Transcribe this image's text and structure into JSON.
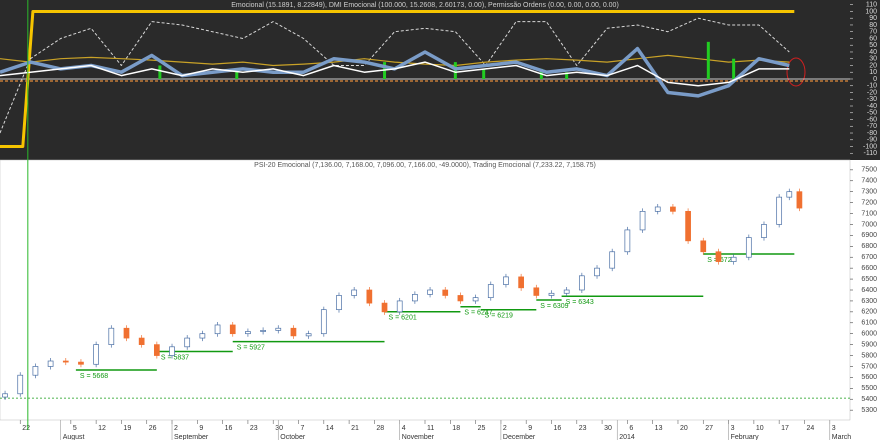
{
  "chart_data": [
    {
      "type": "line",
      "title": "Emocional (15.1891, 8.22849), DMI Emocional (100.000, 15.2608, 2.60173, 0.00), Permissão Ordens (0.00, 0.00, 0.00, 0.00)",
      "xlim": [
        -4,
        164
      ],
      "ylim": [
        -117,
        114
      ],
      "yticks": [
        110,
        100,
        90,
        80,
        70,
        60,
        50,
        40,
        30,
        20,
        10,
        0,
        -10,
        -20,
        -30,
        -40,
        -50,
        -60,
        -70,
        -80,
        -90,
        -100,
        -110
      ],
      "series": [
        {
          "kind": "line",
          "color": "#f5c400",
          "width": 3,
          "dash": false,
          "x": [
            -4,
            0.5,
            2.5,
            153
          ],
          "values": [
            -100,
            -100,
            100,
            100
          ]
        },
        {
          "kind": "line",
          "color": "#d8d8d8",
          "width": 1,
          "dash": true,
          "x": [
            -4,
            2,
            8,
            14,
            20,
            26,
            32,
            38,
            44,
            50,
            56,
            62,
            68,
            74,
            80,
            86,
            92,
            98,
            104,
            110,
            116,
            122,
            128,
            134,
            140,
            146,
            152
          ],
          "values": [
            -80,
            30,
            60,
            75,
            20,
            85,
            80,
            70,
            60,
            85,
            60,
            20,
            20,
            70,
            75,
            70,
            20,
            85,
            85,
            20,
            75,
            80,
            70,
            90,
            80,
            80,
            40
          ]
        },
        {
          "kind": "line",
          "color": "#c9a227",
          "width": 1.2,
          "dash": false,
          "x": [
            -4,
            2,
            8,
            14,
            20,
            26,
            32,
            38,
            44,
            50,
            56,
            62,
            68,
            74,
            80,
            86,
            92,
            98,
            104,
            110,
            116,
            122,
            128,
            134,
            140,
            146,
            152
          ],
          "values": [
            30,
            25,
            30,
            32,
            30,
            28,
            25,
            22,
            25,
            20,
            22,
            25,
            30,
            25,
            22,
            20,
            25,
            28,
            30,
            28,
            25,
            30,
            35,
            30,
            25,
            28,
            25
          ]
        },
        {
          "kind": "line",
          "color": "#e08a3a",
          "width": 1.2,
          "dash": true,
          "x": [
            -4,
            164
          ],
          "values": [
            -3,
            -3
          ]
        },
        {
          "kind": "bar",
          "color": "#22cc22",
          "width": 3,
          "dash": false,
          "x": [
            27.6,
            42.8,
            72,
            86,
            91.6,
            103,
            108,
            136,
            141
          ],
          "values": [
            20,
            15,
            25,
            25,
            15,
            15,
            10,
            55,
            30
          ]
        },
        {
          "kind": "line",
          "color": "#7a9cc8",
          "width": 3.5,
          "dash": false,
          "x": [
            -4,
            2,
            8,
            14,
            20,
            26,
            32,
            38,
            44,
            50,
            56,
            62,
            68,
            74,
            80,
            86,
            92,
            98,
            104,
            110,
            116,
            122,
            128,
            134,
            140,
            146,
            152
          ],
          "values": [
            10,
            25,
            15,
            20,
            10,
            35,
            5,
            10,
            15,
            10,
            10,
            30,
            25,
            15,
            40,
            15,
            20,
            25,
            10,
            15,
            5,
            45,
            -20,
            -25,
            -10,
            30,
            20
          ]
        },
        {
          "kind": "line",
          "color": "#ffffff",
          "width": 1.5,
          "dash": false,
          "x": [
            -4,
            2,
            8,
            14,
            20,
            26,
            32,
            38,
            44,
            50,
            56,
            62,
            68,
            74,
            80,
            86,
            92,
            98,
            104,
            110,
            116,
            122,
            128,
            134,
            140,
            146,
            152
          ],
          "values": [
            5,
            10,
            15,
            20,
            5,
            15,
            5,
            15,
            10,
            15,
            5,
            20,
            10,
            15,
            25,
            10,
            15,
            20,
            5,
            10,
            5,
            20,
            -5,
            -10,
            -5,
            15,
            15
          ]
        }
      ]
    },
    {
      "type": "candlestick",
      "title": "PSI-20 Emocional (7,136.00, 7,168.00, 7,096.00, 7,166.00, -49.0000), Trading Emocional (7,233.22, 7,158.75)",
      "xlim": [
        -4,
        164
      ],
      "ylim": [
        5210,
        7590
      ],
      "yticks": [
        7500,
        7400,
        7300,
        7200,
        7100,
        7000,
        6900,
        6800,
        6700,
        6600,
        6500,
        6400,
        6300,
        6200,
        6100,
        6000,
        5900,
        5800,
        5700,
        5600,
        5500,
        5400,
        5300
      ],
      "xticks": [
        {
          "value": 0,
          "label": "22"
        },
        {
          "value": 10,
          "label": "5"
        },
        {
          "value": 15,
          "label": "12"
        },
        {
          "value": 20,
          "label": "19"
        },
        {
          "value": 25,
          "label": "26"
        },
        {
          "value": 30,
          "label": "2"
        },
        {
          "value": 35,
          "label": "9"
        },
        {
          "value": 40,
          "label": "16"
        },
        {
          "value": 45,
          "label": "23"
        },
        {
          "value": 50,
          "label": "30"
        },
        {
          "value": 55,
          "label": "7"
        },
        {
          "value": 60,
          "label": "14"
        },
        {
          "value": 65,
          "label": "21"
        },
        {
          "value": 70,
          "label": "28"
        },
        {
          "value": 75,
          "label": "4"
        },
        {
          "value": 80,
          "label": "11"
        },
        {
          "value": 85,
          "label": "18"
        },
        {
          "value": 90,
          "label": "25"
        },
        {
          "value": 95,
          "label": "2"
        },
        {
          "value": 100,
          "label": "9"
        },
        {
          "value": 105,
          "label": "16"
        },
        {
          "value": 110,
          "label": "23"
        },
        {
          "value": 115,
          "label": "30"
        },
        {
          "value": 120,
          "label": "6"
        },
        {
          "value": 125,
          "label": "13"
        },
        {
          "value": 130,
          "label": "20"
        },
        {
          "value": 135,
          "label": "27"
        },
        {
          "value": 140,
          "label": "3"
        },
        {
          "value": 145,
          "label": "10"
        },
        {
          "value": 150,
          "label": "17"
        },
        {
          "value": 155,
          "label": "24"
        },
        {
          "value": 160,
          "label": "3"
        }
      ],
      "month_ticks": [
        {
          "value": 8,
          "label": "August"
        },
        {
          "value": 30,
          "label": "September"
        },
        {
          "value": 51,
          "label": "October"
        },
        {
          "value": 75,
          "label": "November"
        },
        {
          "value": 95,
          "label": "December"
        },
        {
          "value": 118,
          "label": "2014"
        },
        {
          "value": 140,
          "label": "February"
        },
        {
          "value": 160,
          "label": "March"
        }
      ],
      "x": [
        -3,
        0,
        3,
        6,
        9,
        12,
        15,
        18,
        21,
        24,
        27,
        30,
        33,
        36,
        39,
        42,
        45,
        48,
        51,
        54,
        57,
        60,
        63,
        66,
        69,
        72,
        75,
        78,
        81,
        84,
        87,
        90,
        93,
        96,
        99,
        102,
        105,
        108,
        111,
        114,
        117,
        120,
        123,
        126,
        129,
        132,
        135,
        138,
        141,
        144,
        147,
        150,
        152,
        154
      ],
      "open": [
        5420,
        5450,
        5620,
        5700,
        5750,
        5740,
        5720,
        5900,
        6050,
        5960,
        5900,
        5800,
        5880,
        5960,
        6000,
        6080,
        6000,
        6020,
        6030,
        6050,
        5980,
        6000,
        6220,
        6350,
        6400,
        6280,
        6200,
        6300,
        6360,
        6400,
        6350,
        6300,
        6330,
        6450,
        6520,
        6420,
        6350,
        6370,
        6400,
        6530,
        6600,
        6750,
        6950,
        7120,
        7160,
        7120,
        6850,
        6750,
        6660,
        6700,
        6880,
        7000,
        7250,
        7300
      ],
      "close": [
        5450,
        5620,
        5700,
        5750,
        5740,
        5720,
        5900,
        6050,
        5960,
        5900,
        5800,
        5880,
        5960,
        6000,
        6080,
        6000,
        6020,
        6030,
        6050,
        5980,
        6000,
        6220,
        6350,
        6400,
        6280,
        6200,
        6300,
        6360,
        6400,
        6350,
        6300,
        6330,
        6450,
        6520,
        6420,
        6350,
        6370,
        6400,
        6530,
        6600,
        6750,
        6950,
        7120,
        7160,
        7120,
        6850,
        6750,
        6660,
        6700,
        6880,
        7000,
        7250,
        7300,
        7150
      ],
      "up_color": "#ffffff",
      "up_stroke": "#4a6fa5",
      "down_color": "#f07030",
      "supports": [
        {
          "label": "S = 5668",
          "value": 5668,
          "x": [
            11,
            27
          ]
        },
        {
          "label": "S = 5837",
          "value": 5837,
          "x": [
            27,
            42
          ]
        },
        {
          "label": "S = 5927",
          "value": 5927,
          "x": [
            42,
            72
          ]
        },
        {
          "label": "S = 6201",
          "value": 6201,
          "x": [
            72,
            87
          ]
        },
        {
          "label": "S = 6247",
          "value": 6247,
          "x": [
            87,
            91
          ]
        },
        {
          "label": "S = 6219",
          "value": 6219,
          "x": [
            91,
            102
          ]
        },
        {
          "label": "S = 6309",
          "value": 6309,
          "x": [
            102,
            107
          ]
        },
        {
          "label": "S = 6343",
          "value": 6343,
          "x": [
            107,
            135
          ]
        },
        {
          "label": "S = 6729",
          "value": 6729,
          "x": [
            135,
            153
          ]
        }
      ],
      "support_color": "#119911",
      "hline": 5410,
      "vline": 1.5
    }
  ]
}
